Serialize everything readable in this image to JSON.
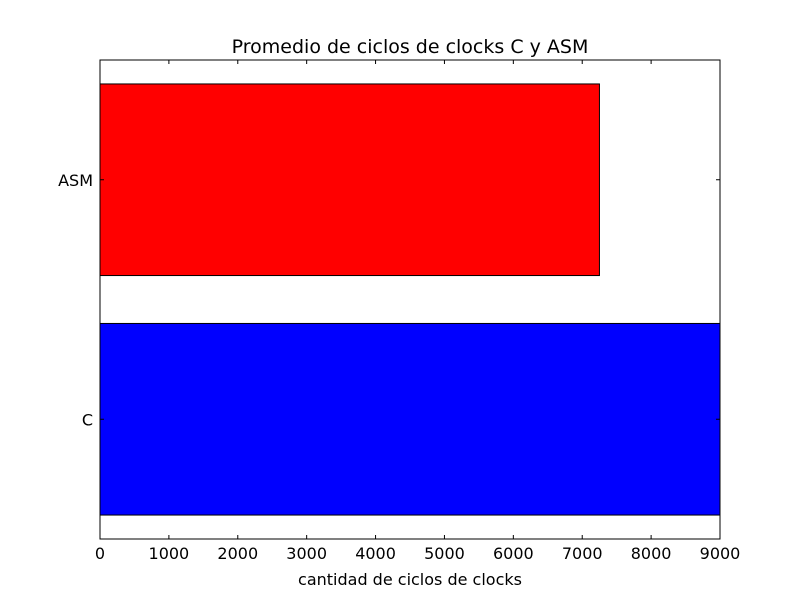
{
  "chart_data": {
    "type": "bar",
    "orientation": "horizontal",
    "title": "Promedio de ciclos de clocks C y ASM",
    "xlabel": "cantidad de ciclos de clocks",
    "ylabel": "",
    "categories": [
      "C",
      "ASM"
    ],
    "values": [
      9000,
      7250
    ],
    "colors": [
      "#0000ff",
      "#ff0000"
    ],
    "xlim": [
      0,
      9000
    ],
    "xticks": [
      "0",
      "1000",
      "2000",
      "3000",
      "4000",
      "5000",
      "6000",
      "7000",
      "8000",
      "9000"
    ],
    "grid": false,
    "legend": "none"
  }
}
